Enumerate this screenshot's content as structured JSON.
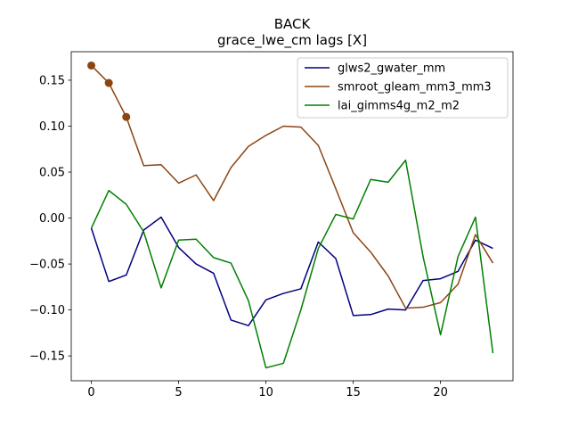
{
  "chart_data": {
    "type": "line",
    "title": "BACK",
    "subtitle": "grace_lwe_cm lags [X]",
    "xlabel": "",
    "ylabel": "",
    "xlim": [
      -1.15,
      24.15
    ],
    "ylim": [
      -0.177,
      0.181
    ],
    "xticks": [
      0,
      5,
      10,
      15,
      20
    ],
    "xtick_labels": [
      "0",
      "5",
      "10",
      "15",
      "20"
    ],
    "yticks": [
      -0.15,
      -0.1,
      -0.05,
      0.0,
      0.05,
      0.1,
      0.15
    ],
    "ytick_labels": [
      "−0.15",
      "−0.10",
      "−0.05",
      "0.00",
      "0.05",
      "0.10",
      "0.15"
    ],
    "grid": false,
    "legend_position": "top-right",
    "x": [
      0,
      1,
      2,
      3,
      4,
      5,
      6,
      7,
      8,
      9,
      10,
      11,
      12,
      13,
      14,
      15,
      16,
      17,
      18,
      19,
      20,
      21,
      22,
      23
    ],
    "series": [
      {
        "name": "glws2_gwater_mm",
        "color": "#00007f",
        "values": [
          -0.011,
          -0.069,
          -0.062,
          -0.013,
          0.001,
          -0.032,
          -0.05,
          -0.06,
          -0.111,
          -0.117,
          -0.089,
          -0.082,
          -0.077,
          -0.026,
          -0.044,
          -0.106,
          -0.105,
          -0.099,
          -0.1,
          -0.068,
          -0.066,
          -0.058,
          -0.024,
          -0.033
        ]
      },
      {
        "name": "smroot_gleam_mm3_mm3",
        "color": "#8b4513",
        "values": [
          0.166,
          0.147,
          0.11,
          0.057,
          0.058,
          0.038,
          0.047,
          0.019,
          0.055,
          0.078,
          0.09,
          0.1,
          0.099,
          0.079,
          0.032,
          -0.016,
          -0.037,
          -0.063,
          -0.098,
          -0.097,
          -0.092,
          -0.072,
          -0.018,
          -0.049
        ],
        "highlighted_indices": [
          0,
          1,
          2
        ]
      },
      {
        "name": "lai_gimms4g_m2_m2",
        "color": "#008000",
        "values": [
          -0.011,
          0.03,
          0.015,
          -0.015,
          -0.076,
          -0.024,
          -0.023,
          -0.043,
          -0.049,
          -0.09,
          -0.163,
          -0.158,
          -0.1,
          -0.033,
          0.004,
          -0.001,
          0.042,
          0.039,
          0.063,
          -0.042,
          -0.127,
          -0.042,
          0.001,
          -0.147
        ]
      }
    ]
  }
}
